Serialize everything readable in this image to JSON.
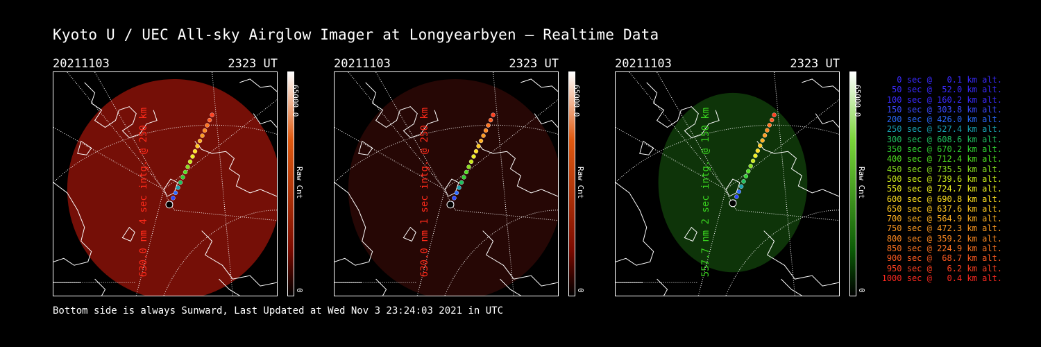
{
  "header": {
    "title": "Kyoto U / UEC All-sky Airglow Imager at Longyearbyen — Realtime Data"
  },
  "footer": {
    "text": "Bottom side is always Sunward, Last Updated at Wed Nov  3 23:24:03 2021 in UTC"
  },
  "panels": [
    {
      "date": "20211103",
      "time": "2323 UT",
      "ylabel": "630.0 nm 4 sec intg. @ 250 km",
      "label_color": "#ff2a1a",
      "glow_color": "#8a1208",
      "glow_opacity": 0.85,
      "cbar_top": "#ffffff",
      "cbar_mid": "#e05a10",
      "cbar_low": "#7a0a00",
      "cbar_max": "65000.0",
      "cbar_label": "Raw Cnt",
      "cbar_min": "0"
    },
    {
      "date": "20211103",
      "time": "2323 UT",
      "ylabel": "630.0 nm 1 sec intg. @ 250 km",
      "label_color": "#ff2a1a",
      "glow_color": "#2a0806",
      "glow_opacity": 0.9,
      "cbar_top": "#ffffff",
      "cbar_mid": "#e05a10",
      "cbar_low": "#7a0a00",
      "cbar_max": "65000.0",
      "cbar_label": "Raw Cnt",
      "cbar_min": "0"
    },
    {
      "date": "20211103",
      "time": "2323 UT",
      "ylabel": "557.7 nm 2 sec intg. @ 150 km",
      "label_color": "#39d21f",
      "glow_color": "#0f3a0a",
      "glow_opacity": 0.9,
      "cbar_top": "#ffffff",
      "cbar_mid": "#7ad53a",
      "cbar_low": "#0a5a05",
      "cbar_max": "65000.0",
      "cbar_label": "Raw Cnt",
      "cbar_min": "0"
    }
  ],
  "legend": [
    {
      "text": "0 sec @   0.1 km alt.",
      "color": "#3a2aff"
    },
    {
      "text": "50 sec @  52.0 km alt.",
      "color": "#3a2aff"
    },
    {
      "text": "100 sec @ 160.2 km alt.",
      "color": "#3a2aff"
    },
    {
      "text": "150 sec @ 303.8 km alt.",
      "color": "#3a4aff"
    },
    {
      "text": "200 sec @ 426.0 km alt.",
      "color": "#2a6aff"
    },
    {
      "text": "250 sec @ 527.4 km alt.",
      "color": "#18a0b0"
    },
    {
      "text": "300 sec @ 608.6 km alt.",
      "color": "#20c060"
    },
    {
      "text": "350 sec @ 670.2 km alt.",
      "color": "#30d030"
    },
    {
      "text": "400 sec @ 712.4 km alt.",
      "color": "#50e020"
    },
    {
      "text": "450 sec @ 735.5 km alt.",
      "color": "#8ae020"
    },
    {
      "text": "500 sec @ 739.6 km alt.",
      "color": "#c8e818"
    },
    {
      "text": "550 sec @ 724.7 km alt.",
      "color": "#f0f020"
    },
    {
      "text": "600 sec @ 690.8 km alt.",
      "color": "#ffe020"
    },
    {
      "text": "650 sec @ 637.6 km alt.",
      "color": "#ffc820"
    },
    {
      "text": "700 sec @ 564.9 km alt.",
      "color": "#ffb020"
    },
    {
      "text": "750 sec @ 472.3 km alt.",
      "color": "#ff9a20"
    },
    {
      "text": "800 sec @ 359.2 km alt.",
      "color": "#ff8a20"
    },
    {
      "text": "850 sec @ 224.9 km alt.",
      "color": "#ff7420"
    },
    {
      "text": "900 sec @  68.7 km alt.",
      "color": "#ff5a20"
    },
    {
      "text": "950 sec @   6.2 km alt.",
      "color": "#ff4020"
    },
    {
      "text": "1000 sec @   0.4 km alt.",
      "color": "#ff2a20"
    }
  ]
}
